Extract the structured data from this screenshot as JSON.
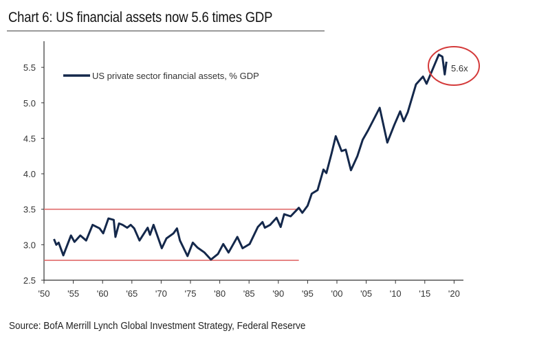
{
  "title": "Chart 6: US financial assets now 5.6 times GDP",
  "source": "Source: BofA Merrill Lynch Global Investment Strategy, Federal Reserve",
  "chart_data": {
    "type": "line",
    "title": "Chart 6: US financial assets now 5.6 times GDP",
    "xlabel": "",
    "ylabel": "",
    "xlim": [
      1950,
      2022
    ],
    "ylim": [
      2.5,
      5.8
    ],
    "grid": false,
    "legend_position": "top-left",
    "x_ticks": [
      1950,
      1955,
      1960,
      1965,
      1970,
      1975,
      1980,
      1985,
      1990,
      1995,
      2000,
      2005,
      2010,
      2015,
      2020
    ],
    "x_tick_labels": [
      "'50",
      "'55",
      "'60",
      "'65",
      "'70",
      "'75",
      "'80",
      "'85",
      "'90",
      "'95",
      "'00",
      "'05",
      "'10",
      "'15",
      "'20"
    ],
    "y_ticks": [
      2.5,
      3.0,
      3.5,
      4.0,
      4.5,
      5.0,
      5.5
    ],
    "y_tick_labels": [
      "2.5",
      "3.0",
      "3.5",
      "4.0",
      "4.5",
      "5.0",
      "5.5"
    ],
    "series": [
      {
        "name": "US private sector financial assets, % GDP",
        "color": "#14284b",
        "x": [
          1951.7,
          1952.1,
          1952.5,
          1953.3,
          1954.6,
          1955.2,
          1956.2,
          1957.2,
          1958.3,
          1959.5,
          1960.1,
          1961.0,
          1961.9,
          1962.2,
          1962.8,
          1963.4,
          1964.2,
          1964.8,
          1965.4,
          1966.3,
          1967.7,
          1968.1,
          1968.7,
          1970.1,
          1970.9,
          1972.1,
          1972.7,
          1973.2,
          1974.5,
          1975.4,
          1976.2,
          1977.4,
          1978.5,
          1979.7,
          1980.6,
          1981.5,
          1983.0,
          1983.9,
          1985.1,
          1986.5,
          1987.3,
          1987.7,
          1988.6,
          1989.7,
          1990.4,
          1991.0,
          1992.1,
          1993.5,
          1994.1,
          1995.0,
          1995.7,
          1996.7,
          1997.7,
          1998.2,
          1999.1,
          1999.8,
          2000.8,
          2001.5,
          2002.4,
          2003.5,
          2004.4,
          2005.3,
          2007.3,
          2008.6,
          2009.8,
          2010.8,
          2011.4,
          2012.1,
          2013.5,
          2014.7,
          2015.3,
          2017.4,
          2018.0,
          2018.4,
          2018.7
        ],
        "values": [
          3.08,
          3.0,
          3.03,
          2.85,
          3.13,
          3.04,
          3.13,
          3.06,
          3.28,
          3.23,
          3.16,
          3.37,
          3.35,
          3.11,
          3.3,
          3.28,
          3.24,
          3.28,
          3.23,
          3.06,
          3.24,
          3.14,
          3.28,
          2.95,
          3.09,
          3.16,
          3.23,
          3.06,
          2.84,
          3.03,
          2.96,
          2.89,
          2.79,
          2.87,
          3.01,
          2.89,
          3.11,
          2.95,
          3.01,
          3.25,
          3.32,
          3.24,
          3.28,
          3.38,
          3.25,
          3.43,
          3.4,
          3.52,
          3.45,
          3.55,
          3.72,
          3.77,
          4.06,
          4.01,
          4.29,
          4.53,
          4.32,
          4.34,
          4.05,
          4.25,
          4.48,
          4.61,
          4.93,
          4.44,
          4.69,
          4.88,
          4.74,
          4.87,
          5.26,
          5.37,
          5.27,
          5.68,
          5.65,
          5.4,
          5.58
        ]
      }
    ],
    "reference_lines": [
      {
        "value": 3.5,
        "x_end": 1993.5,
        "color": "#e06a6a"
      },
      {
        "value": 2.78,
        "x_end": 1993.5,
        "color": "#e06a6a"
      }
    ],
    "annotations": [
      {
        "text": "5.6x",
        "x": 2018,
        "y": 5.6,
        "circle_color": "#d43a3a"
      }
    ]
  }
}
